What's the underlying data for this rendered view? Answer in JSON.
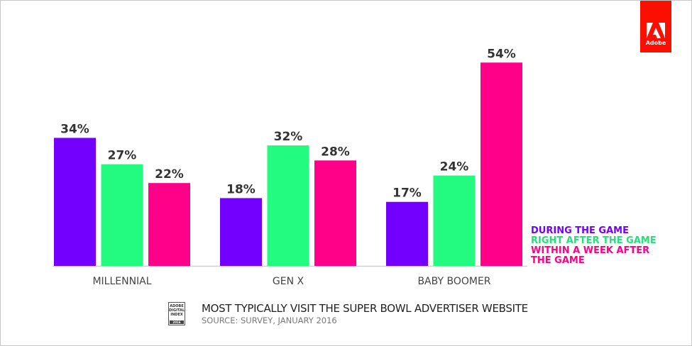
{
  "chart_data": {
    "type": "bar",
    "title": "MOST TYPICALLY VISIT THE SUPER BOWL ADVERTISER WEBSITE",
    "subtitle": "SOURCE: SURVEY, JANUARY 2016",
    "categories": [
      "MILLENNIAL",
      "GEN X",
      "BABY BOOMER"
    ],
    "series": [
      {
        "name": "DURING THE GAME",
        "color": "#7300ff",
        "values": [
          34,
          18,
          17
        ],
        "labels": [
          "34%",
          "18%",
          "17%"
        ]
      },
      {
        "name": "RIGHT AFTER THE GAME",
        "color": "#22fa80",
        "values": [
          27,
          32,
          24
        ],
        "labels": [
          "27%",
          "32%",
          "24%"
        ]
      },
      {
        "name": "WITHIN A WEEK AFTER THE GAME",
        "color": "#ff0088",
        "values": [
          22,
          28,
          54
        ],
        "labels": [
          "22%",
          "28%",
          "54%"
        ]
      }
    ],
    "legend_lines": [
      "DURING THE GAME",
      "RIGHT AFTER THE GAME",
      "WITHIN A WEEK AFTER",
      "THE GAME"
    ],
    "legend_placement": "bottom-right",
    "ylim": [
      0,
      60
    ],
    "xlabel": "",
    "ylabel": "",
    "grid": false
  },
  "logo": {
    "text": "Adobe"
  },
  "badge": {
    "lines": [
      "ADOBE",
      "DIGITAL",
      "INDEX"
    ],
    "year": "2016"
  }
}
